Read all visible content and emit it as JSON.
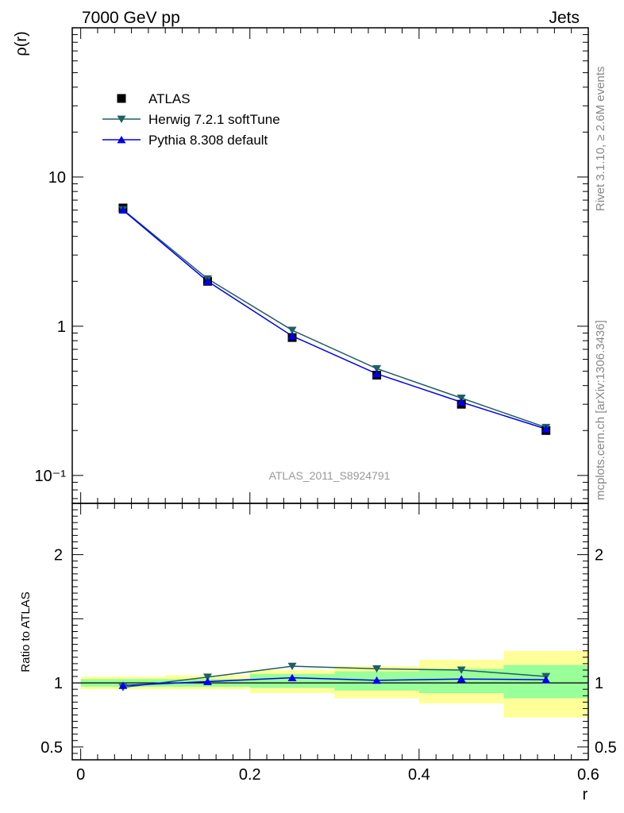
{
  "header": {
    "energy": "7000 GeV pp",
    "process": "Jets"
  },
  "side_text": {
    "rivet": "Rivet 3.1.10, ≥ 2.6M events",
    "source": "mcplots.cern.ch [arXiv:1306.3436]"
  },
  "watermark": "ATLAS_2011_S8924791",
  "colors": {
    "atlas": "#000000",
    "herwig": "#1f5f66",
    "pythia": "#0000ee",
    "band_stat": "#99ff99",
    "band_total": "#ffff99"
  },
  "chart_data": [
    {
      "type": "line",
      "panel": "main",
      "yscale": "log",
      "ylabel": "ρ(r)",
      "xlim": [
        -0.01,
        0.6
      ],
      "ylim": [
        0.065,
        100
      ],
      "y_tick_labels": [
        "10⁻¹",
        "1",
        "10"
      ],
      "x": [
        0.05,
        0.15,
        0.25,
        0.35,
        0.45,
        0.55
      ],
      "series": [
        {
          "name": "ATLAS",
          "marker": "square",
          "values": [
            6.2,
            2.0,
            0.84,
            0.47,
            0.3,
            0.2
          ]
        },
        {
          "name": "Herwig 7.2.1 softTune",
          "marker": "triangle-down",
          "values": [
            6.05,
            2.08,
            0.94,
            0.52,
            0.33,
            0.21
          ]
        },
        {
          "name": "Pythia 8.308 default",
          "marker": "triangle-up",
          "values": [
            6.0,
            2.0,
            0.86,
            0.48,
            0.31,
            0.205
          ]
        }
      ],
      "legend": "top-left"
    },
    {
      "type": "line",
      "panel": "ratio",
      "ylabel": "Ratio to ATLAS",
      "xlabel": "r",
      "xlim": [
        -0.01,
        0.6
      ],
      "ylim": [
        0.4,
        2.4
      ],
      "y_tick_labels": [
        "0.5",
        "1",
        "2"
      ],
      "x_tick_labels": [
        "0",
        "0.2",
        "0.4",
        "0.6"
      ],
      "bin_edges": [
        0.0,
        0.1,
        0.2,
        0.3,
        0.4,
        0.5,
        0.6
      ],
      "band_stat": [
        [
          0.97,
          1.03
        ],
        [
          0.97,
          1.03
        ],
        [
          0.96,
          1.07
        ],
        [
          0.94,
          1.09
        ],
        [
          0.92,
          1.11
        ],
        [
          0.88,
          1.14
        ]
      ],
      "band_total": [
        [
          0.95,
          1.05
        ],
        [
          0.95,
          1.06
        ],
        [
          0.92,
          1.1
        ],
        [
          0.88,
          1.13
        ],
        [
          0.84,
          1.18
        ],
        [
          0.73,
          1.25
        ]
      ],
      "x": [
        0.05,
        0.15,
        0.25,
        0.35,
        0.45,
        0.55
      ],
      "series": [
        {
          "name": "Herwig 7.2.1 softTune",
          "values": [
            0.965,
            1.045,
            1.13,
            1.11,
            1.1,
            1.05
          ]
        },
        {
          "name": "Pythia 8.308 default",
          "values": [
            0.98,
            1.01,
            1.04,
            1.02,
            1.03,
            1.025
          ]
        }
      ]
    }
  ]
}
